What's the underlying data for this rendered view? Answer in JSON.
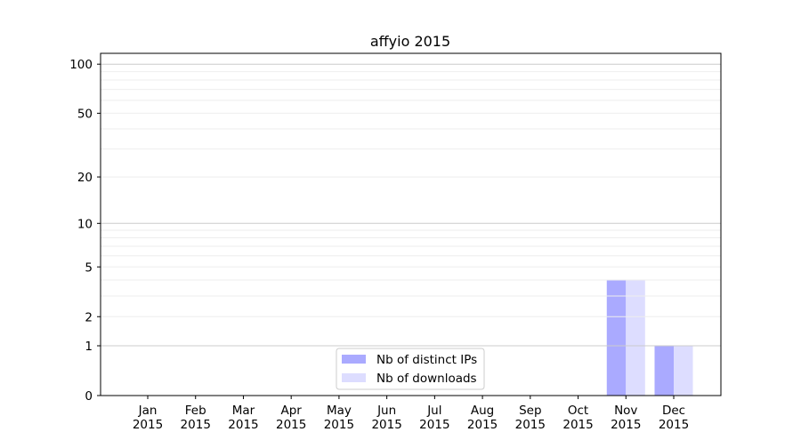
{
  "chart_data": {
    "type": "bar",
    "title": "affyio 2015",
    "xlabel": "",
    "ylabel": "",
    "yscale": "symlog",
    "ylim": [
      0,
      117
    ],
    "yticks": [
      0,
      1,
      2,
      5,
      10,
      20,
      50,
      100
    ],
    "grid": true,
    "legend_position": "lower-center",
    "categories": [
      "Jan\n2015",
      "Feb\n2015",
      "Mar\n2015",
      "Apr\n2015",
      "May\n2015",
      "Jun\n2015",
      "Jul\n2015",
      "Aug\n2015",
      "Sep\n2015",
      "Oct\n2015",
      "Nov\n2015",
      "Dec\n2015"
    ],
    "series": [
      {
        "name": "Nb of distinct IPs",
        "color": "#aaaaff",
        "values": [
          0,
          0,
          0,
          0,
          0,
          0,
          0,
          0,
          0,
          0,
          4,
          1
        ]
      },
      {
        "name": "Nb of downloads",
        "color": "#ddddff",
        "values": [
          0,
          0,
          0,
          0,
          0,
          0,
          0,
          0,
          0,
          0,
          4,
          1
        ]
      }
    ]
  }
}
